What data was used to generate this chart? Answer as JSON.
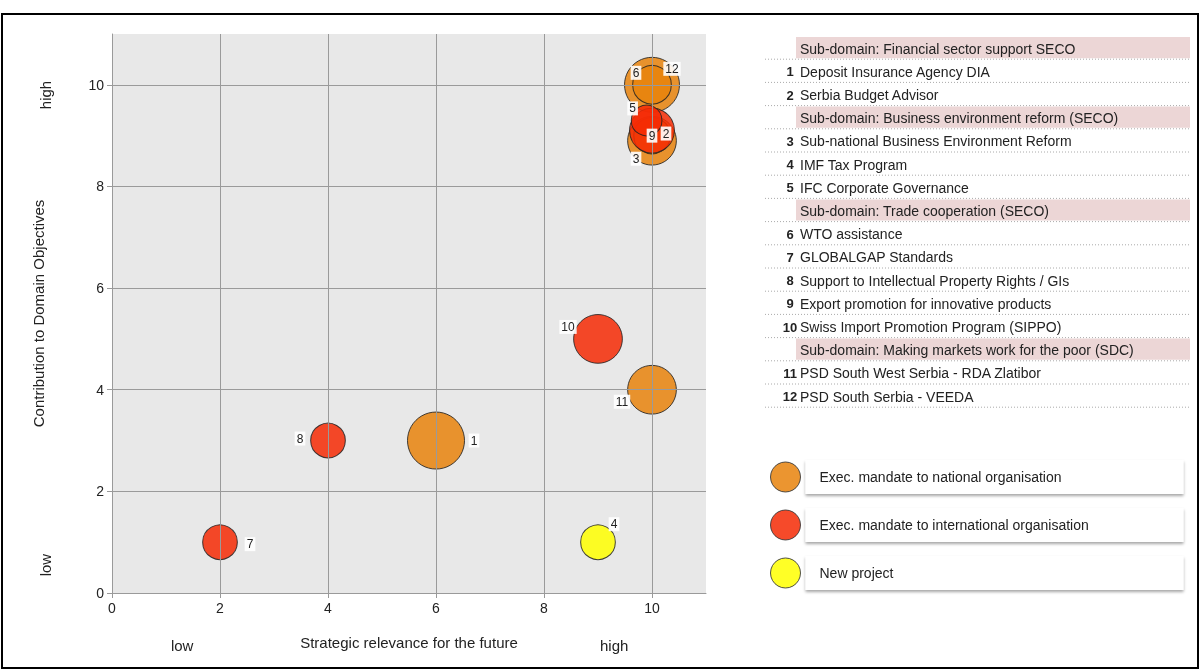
{
  "chart_data": {
    "type": "bubble",
    "xlabel": "Strategic relevance for the future",
    "ylabel": "Contribution to Domain Objectives",
    "xlim": [
      0,
      11
    ],
    "ylim": [
      0,
      11
    ],
    "xticks": [
      0,
      2,
      4,
      6,
      8,
      10
    ],
    "yticks": [
      0,
      2,
      4,
      6,
      8,
      10
    ],
    "grid": true,
    "legend": "right",
    "series": [
      {
        "name": "Exec. mandate to national organisation",
        "color": "#e8820c",
        "x": [
          10,
          6,
          10,
          10,
          10,
          10
        ],
        "values": [
          10,
          3,
          8.9,
          9,
          4,
          10
        ],
        "sizes": [
          0.93,
          1,
          0.73,
          0.41,
          0.73,
          0.46
        ]
      },
      {
        "name": "Exec. mandate to international organisation",
        "color": "#f52a05",
        "x": [
          10,
          9.9,
          2,
          4,
          9
        ],
        "values": [
          9.1,
          9.3,
          1,
          3,
          5
        ],
        "sizes": [
          0.62,
          0.29,
          0.37,
          0.37,
          0.73
        ]
      },
      {
        "name": "New project",
        "color": "#ffff00",
        "x": [
          9
        ],
        "values": [
          1
        ],
        "sizes": [
          0.37
        ]
      }
    ],
    "annotations": [
      "low",
      "high",
      "low",
      "high",
      {
        "text": "1",
        "x": 6,
        "y": 3
      },
      {
        "text": "2",
        "x": 10,
        "y": 9.1
      },
      {
        "text": "3",
        "x": 10,
        "y": 8.9
      },
      {
        "text": "4",
        "x": 9,
        "y": 1
      },
      {
        "text": "5",
        "x": 9.9,
        "y": 9.3
      },
      {
        "text": "6",
        "x": 10,
        "y": 10
      },
      {
        "text": "7",
        "x": 2,
        "y": 1
      },
      {
        "text": "8",
        "x": 4,
        "y": 3
      },
      {
        "text": "9",
        "x": 10,
        "y": 9
      },
      {
        "text": "10",
        "x": 9,
        "y": 5
      },
      {
        "text": "11",
        "x": 10,
        "y": 4
      },
      {
        "text": "12",
        "x": 10,
        "y": 10
      },
      "Sub-domain: Financial sector support SECO",
      "1 Deposit Insurance Agency DIA",
      "2 Serbia Budget Advisor",
      "Sub-domain: Business environment reform (SECO)",
      "3 Sub-national Business Environment Reform",
      "4 IMF Tax Program",
      "5 IFC Corporate Governance",
      "Sub-domain: Trade cooperation (SECO)",
      "6 WTO assistance",
      "7 GLOBALGAP Standards",
      "8 Support to Intellectual Property Rights / GIs",
      "9 Export promotion for innovative products",
      "10 Swiss Import Promotion Program (SIPPO)",
      "Sub-domain: Making markets work for the poor (SDC)",
      "11 PSD South West Serbia - RDA Zlatibor",
      "12 PSD South Serbia - VEEDA"
    ]
  }
}
